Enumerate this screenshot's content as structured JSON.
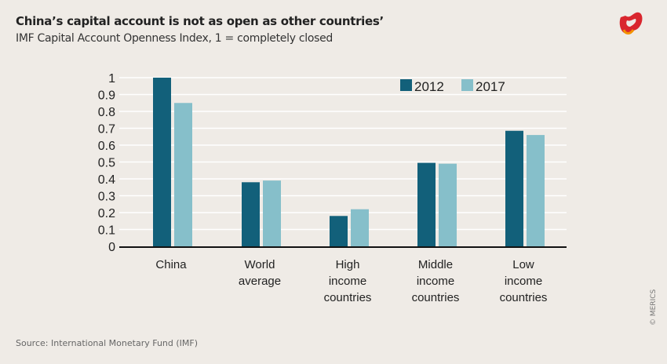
{
  "title": "China’s capital account is not as open as other countries’",
  "subtitle": "IMF Capital Account Openness Index, 1 = completely closed",
  "source": "Source: International Monetary Fund (IMF)",
  "copyright": "© MERICS",
  "logo": "MERICS",
  "colors": {
    "background": "#efebe6",
    "2012": "#12607a",
    "2017": "#86bfca"
  },
  "chart_data": {
    "type": "bar",
    "title": "China’s capital account is not as open as other countries’",
    "ylabel": "",
    "xlabel": "",
    "ylim": [
      0,
      1
    ],
    "yticks": [
      "0",
      "0.1",
      "0.2",
      "0.3",
      "0.4",
      "0.5",
      "0.6",
      "0.7",
      "0.8",
      "0.9",
      "1"
    ],
    "grid": true,
    "legend": "top-right",
    "categories": [
      [
        "China"
      ],
      [
        "World",
        "average"
      ],
      [
        "High",
        "income",
        "countries"
      ],
      [
        "Middle",
        "income",
        "countries"
      ],
      [
        "Low",
        "income",
        "countries"
      ]
    ],
    "series": [
      {
        "name": "2012",
        "color": "#12607a",
        "values": [
          1.0,
          0.38,
          0.18,
          0.495,
          0.685
        ]
      },
      {
        "name": "2017",
        "color": "#86bfca",
        "values": [
          0.85,
          0.39,
          0.22,
          0.49,
          0.66
        ]
      }
    ]
  }
}
